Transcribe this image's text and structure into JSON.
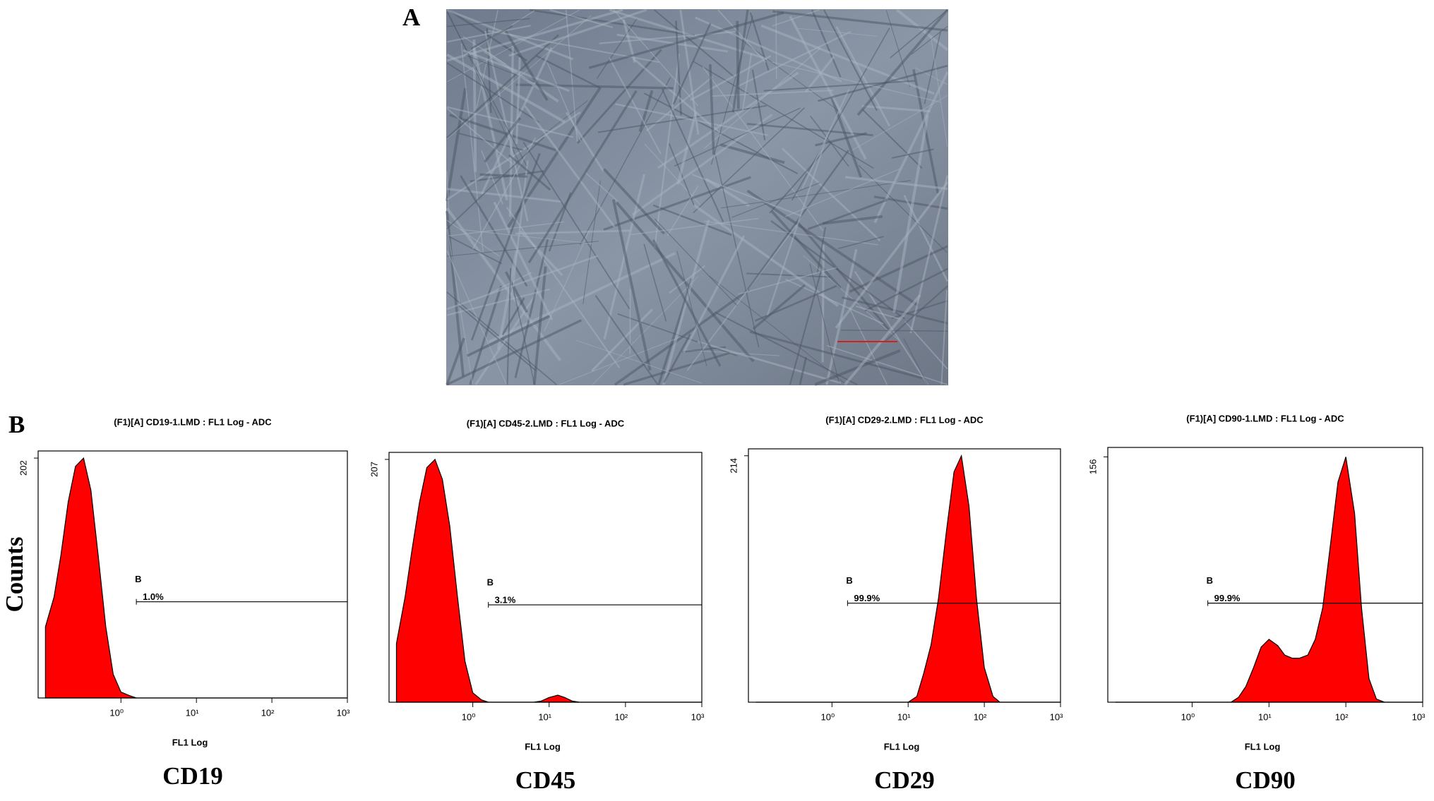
{
  "panel_labels": [
    "A",
    "B"
  ],
  "chart_data": [
    {
      "type": "histogram",
      "title": "(F1)[A] CD19-1.LMD : FL1 Log - ADC",
      "ylabel": "Counts",
      "xlabel": "FL1 Log",
      "caption": "CD19",
      "log_x": true,
      "grid": false,
      "color": "#ff0000",
      "xlim": [
        0.08,
        1000
      ],
      "xticks": [
        {
          "value": 1,
          "label": "10⁰"
        },
        {
          "value": 10,
          "label": "10¹"
        },
        {
          "value": 100,
          "label": "10²"
        },
        {
          "value": 1000,
          "label": "10³"
        }
      ],
      "ylim": [
        0,
        208
      ],
      "yticks": [
        202
      ],
      "x": [
        0.1,
        0.13,
        0.16,
        0.2,
        0.25,
        0.32,
        0.4,
        0.5,
        0.63,
        0.79,
        1,
        1.3,
        1.6,
        2,
        2.5,
        3.2,
        4,
        5,
        6.3,
        7.9,
        10,
        13,
        16,
        20,
        25,
        32,
        40,
        50,
        63,
        79,
        100,
        130,
        160,
        200,
        250,
        320,
        400,
        500,
        630,
        790,
        1000
      ],
      "values": [
        60,
        85,
        120,
        165,
        195,
        202,
        175,
        120,
        60,
        20,
        5,
        2,
        0,
        0,
        0,
        0,
        0,
        0,
        0,
        0,
        0,
        0,
        0,
        0,
        0,
        0,
        0,
        0,
        0,
        0,
        0,
        0,
        0,
        0,
        0,
        0,
        0,
        0,
        0,
        0,
        0
      ],
      "gate": {
        "name": "B",
        "label": "1.0%",
        "start": 1.6,
        "end": 1000,
        "level": 81
      }
    },
    {
      "type": "histogram",
      "title": "(F1)[A] CD45-2.LMD : FL1 Log - ADC",
      "xlabel": "FL1 Log",
      "caption": "CD45",
      "log_x": true,
      "grid": false,
      "color": "#ff0000",
      "xlim": [
        0.08,
        1000
      ],
      "xticks": [
        {
          "value": 1,
          "label": "10⁰"
        },
        {
          "value": 10,
          "label": "10¹"
        },
        {
          "value": 100,
          "label": "10²"
        },
        {
          "value": 1000,
          "label": "10³"
        }
      ],
      "ylim": [
        0,
        213
      ],
      "yticks": [
        207
      ],
      "x": [
        0.1,
        0.13,
        0.16,
        0.2,
        0.25,
        0.32,
        0.4,
        0.5,
        0.63,
        0.79,
        1,
        1.3,
        1.6,
        2,
        2.5,
        3.2,
        4,
        5,
        6.3,
        7.9,
        10,
        13,
        16,
        20,
        25,
        32,
        40,
        50,
        63,
        79,
        100,
        130,
        160,
        200,
        250,
        320,
        400,
        500,
        630,
        790,
        1000
      ],
      "values": [
        50,
        90,
        130,
        170,
        200,
        207,
        190,
        150,
        90,
        35,
        8,
        2,
        0,
        0,
        0,
        0,
        0,
        0,
        0,
        1,
        4,
        6,
        4,
        1,
        0,
        0,
        0,
        0,
        0,
        0,
        0,
        0,
        0,
        0,
        0,
        0,
        0,
        0,
        0,
        0,
        0
      ],
      "gate": {
        "name": "B",
        "label": "3.1%",
        "start": 1.6,
        "end": 1000,
        "level": 83
      }
    },
    {
      "type": "histogram",
      "title": "(F1)[A] CD29-2.LMD : FL1 Log - ADC",
      "xlabel": "FL1 Log",
      "caption": "CD29",
      "log_x": true,
      "grid": false,
      "color": "#ff0000",
      "xlim": [
        0.08,
        1000
      ],
      "xticks": [
        {
          "value": 1,
          "label": "10⁰"
        },
        {
          "value": 10,
          "label": "10¹"
        },
        {
          "value": 100,
          "label": "10²"
        },
        {
          "value": 1000,
          "label": "10³"
        }
      ],
      "ylim": [
        0,
        220
      ],
      "yticks": [
        214
      ],
      "x": [
        0.1,
        0.13,
        0.16,
        0.2,
        0.25,
        0.32,
        0.4,
        0.5,
        0.63,
        0.79,
        1,
        1.3,
        1.6,
        2,
        2.5,
        3.2,
        4,
        5,
        6.3,
        7.9,
        10,
        13,
        16,
        20,
        25,
        32,
        40,
        50,
        63,
        79,
        100,
        130,
        160,
        200,
        250,
        320,
        400,
        500,
        630,
        790,
        1000
      ],
      "values": [
        0,
        0,
        0,
        0,
        0,
        0,
        0,
        0,
        0,
        0,
        0,
        0,
        0,
        0,
        0,
        0,
        0,
        0,
        0,
        0,
        0,
        5,
        25,
        50,
        90,
        150,
        200,
        214,
        170,
        90,
        30,
        5,
        0,
        0,
        0,
        0,
        0,
        0,
        0,
        0,
        0
      ],
      "gate": {
        "name": "B",
        "label": "99.9%",
        "start": 1.6,
        "end": 1000,
        "level": 86
      }
    },
    {
      "type": "histogram",
      "title": "(F1)[A] CD90-1.LMD : FL1 Log - ADC",
      "xlabel": "FL1 Log",
      "caption": "CD90",
      "log_x": true,
      "grid": false,
      "color": "#ff0000",
      "xlim": [
        0.08,
        1000
      ],
      "xticks": [
        {
          "value": 1,
          "label": "10⁰"
        },
        {
          "value": 10,
          "label": "10¹"
        },
        {
          "value": 100,
          "label": "10²"
        },
        {
          "value": 1000,
          "label": "10³"
        }
      ],
      "ylim": [
        0,
        162
      ],
      "yticks": [
        156
      ],
      "x": [
        0.1,
        0.13,
        0.16,
        0.2,
        0.25,
        0.32,
        0.4,
        0.5,
        0.63,
        0.79,
        1,
        1.3,
        1.6,
        2,
        2.5,
        3.2,
        4,
        5,
        6.3,
        7.9,
        10,
        13,
        16,
        20,
        25,
        32,
        40,
        50,
        63,
        79,
        100,
        130,
        160,
        200,
        250,
        320,
        400,
        500,
        630,
        790,
        1000
      ],
      "values": [
        0,
        0,
        0,
        0,
        0,
        0,
        0,
        0,
        0,
        0,
        0,
        0,
        0,
        0,
        0,
        0,
        3,
        10,
        22,
        35,
        40,
        36,
        30,
        28,
        28,
        30,
        40,
        60,
        100,
        140,
        156,
        120,
        60,
        15,
        2,
        0,
        0,
        0,
        0,
        0,
        0
      ],
      "gate": {
        "name": "B",
        "label": "99.9%",
        "start": 1.6,
        "end": 1000,
        "level": 63
      }
    }
  ]
}
